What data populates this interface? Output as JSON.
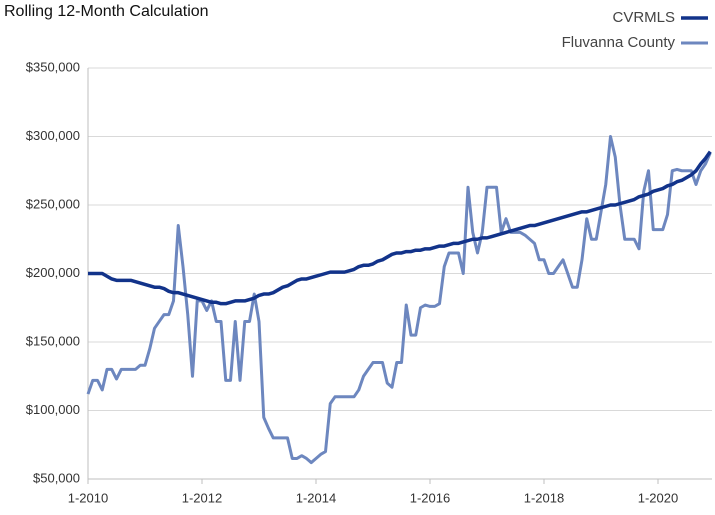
{
  "chart_data": {
    "type": "line",
    "title": "Rolling 12-Month Calculation",
    "categories": [
      "1-2010",
      null,
      null,
      null,
      null,
      null,
      null,
      null,
      null,
      null,
      null,
      null,
      null,
      null,
      null,
      null,
      null,
      null,
      null,
      null,
      null,
      null,
      null,
      null,
      "1-2012",
      null,
      null,
      null,
      null,
      null,
      null,
      null,
      null,
      null,
      null,
      null,
      null,
      null,
      null,
      null,
      null,
      null,
      null,
      null,
      null,
      null,
      null,
      null,
      "1-2014",
      null,
      null,
      null,
      null,
      null,
      null,
      null,
      null,
      null,
      null,
      null,
      null,
      null,
      null,
      null,
      null,
      null,
      null,
      null,
      null,
      null,
      null,
      null,
      "1-2016",
      null,
      null,
      null,
      null,
      null,
      null,
      null,
      null,
      null,
      null,
      null,
      null,
      null,
      null,
      null,
      null,
      null,
      null,
      null,
      null,
      null,
      null,
      null,
      "1-2018",
      null,
      null,
      null,
      null,
      null,
      null,
      null,
      null,
      null,
      null,
      null,
      null,
      null,
      null,
      null,
      null,
      null,
      null,
      null,
      null,
      null,
      null,
      null,
      "1-2020",
      null,
      null,
      null,
      null,
      null,
      null,
      null,
      null,
      null,
      null,
      null
    ],
    "series": [
      {
        "name": "CVRMLS",
        "color": "#12338a",
        "width": 3.5,
        "values": [
          200000,
          200000,
          200000,
          200000,
          198000,
          196000,
          195000,
          195000,
          195000,
          195000,
          194000,
          193000,
          192000,
          191000,
          190000,
          190000,
          189000,
          187000,
          186000,
          186000,
          185000,
          184000,
          183000,
          182000,
          181000,
          180000,
          179000,
          179000,
          178000,
          178000,
          179000,
          180000,
          180000,
          180000,
          181000,
          182000,
          184000,
          185000,
          185000,
          186000,
          188000,
          190000,
          191000,
          193000,
          195000,
          196000,
          196000,
          197000,
          198000,
          199000,
          200000,
          201000,
          201000,
          201000,
          201000,
          202000,
          203000,
          205000,
          206000,
          206000,
          207000,
          209000,
          210000,
          212000,
          214000,
          215000,
          215000,
          216000,
          216000,
          217000,
          217000,
          218000,
          218000,
          219000,
          220000,
          220000,
          221000,
          222000,
          222000,
          223000,
          224000,
          225000,
          225000,
          226000,
          226000,
          227000,
          228000,
          229000,
          230000,
          231000,
          232000,
          233000,
          234000,
          235000,
          235000,
          236000,
          237000,
          238000,
          239000,
          240000,
          241000,
          242000,
          243000,
          244000,
          245000,
          245000,
          246000,
          247000,
          248000,
          249000,
          250000,
          250000,
          251000,
          252000,
          253000,
          254000,
          256000,
          257000,
          258000,
          260000,
          261000,
          262000,
          264000,
          265000,
          267000,
          268000,
          270000,
          272000,
          275000,
          280000,
          284000,
          289000
        ]
      },
      {
        "name": "Fluvanna County",
        "color": "#6d87bf",
        "width": 3,
        "values": [
          112000,
          122000,
          122000,
          115000,
          130000,
          130000,
          123000,
          130000,
          130000,
          130000,
          130000,
          133000,
          133000,
          145000,
          160000,
          165000,
          170000,
          170000,
          180000,
          235000,
          205000,
          170000,
          125000,
          180000,
          180000,
          173000,
          180000,
          165000,
          165000,
          122000,
          122000,
          165000,
          122000,
          165000,
          165000,
          185000,
          165000,
          95000,
          87000,
          80000,
          80000,
          80000,
          80000,
          65000,
          65000,
          67000,
          65000,
          62000,
          65000,
          68000,
          70000,
          105000,
          110000,
          110000,
          110000,
          110000,
          110000,
          115000,
          125000,
          130000,
          135000,
          135000,
          135000,
          120000,
          117000,
          135000,
          135000,
          177000,
          155000,
          155000,
          175000,
          177000,
          176000,
          176000,
          178000,
          205000,
          215000,
          215000,
          215000,
          200000,
          263000,
          230000,
          215000,
          230000,
          263000,
          263000,
          263000,
          230000,
          240000,
          230000,
          230000,
          230000,
          228000,
          225000,
          222000,
          210000,
          210000,
          200000,
          200000,
          205000,
          210000,
          200000,
          190000,
          190000,
          210000,
          240000,
          225000,
          225000,
          245000,
          265000,
          300000,
          285000,
          250000,
          225000,
          225000,
          225000,
          218000,
          260000,
          275000,
          232000,
          232000,
          232000,
          243000,
          275000,
          276000,
          275000,
          275000,
          275000,
          265000,
          275000,
          280000,
          288000
        ]
      }
    ],
    "ylim": [
      50000,
      350000
    ],
    "yticks": [
      {
        "value": 50000,
        "label": "$50,000"
      },
      {
        "value": 100000,
        "label": "$100,000"
      },
      {
        "value": 150000,
        "label": "$150,000"
      },
      {
        "value": 200000,
        "label": "$200,000"
      },
      {
        "value": 250000,
        "label": "$250,000"
      },
      {
        "value": 300000,
        "label": "$300,000"
      },
      {
        "value": 350000,
        "label": "$350,000"
      }
    ],
    "grid": true,
    "legend": "top-right"
  }
}
